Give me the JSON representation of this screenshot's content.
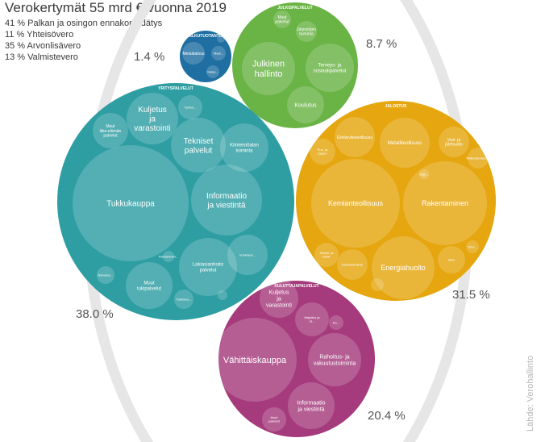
{
  "title": "Verokertymät 55 mrd € vuonna 2019",
  "legend": [
    "41 % Palkan ja osingon ennakonpidätys",
    "11 % Yhteisövero",
    "35 % Arvonlisävero",
    "13 % Valmistevero"
  ],
  "source": "Lähde: Verohallinto",
  "colors": {
    "alkutuotanto": "#1f6fa3",
    "julkispalvelut": "#6ab345",
    "yrityspalvelut": "#2e9ea3",
    "jalostus": "#e5a60f",
    "kuluttajapalvelut": "#a53b7c",
    "outer_ring": "#e6e6e6"
  },
  "chart_data": {
    "type": "packed-bubble",
    "sectors": [
      {
        "key": "alkutuotanto",
        "name": "ALKUTUOTANTO",
        "share_label": "1.4 %",
        "children": [
          {
            "label": "Metsätalous"
          },
          {
            "label": "Maat..."
          },
          {
            "label": "Kalas..."
          },
          {
            "label": ""
          }
        ]
      },
      {
        "key": "julkispalvelut",
        "name": "JULKISPALVELUT",
        "share_label": "8.7 %",
        "children": [
          {
            "label": "Julkinen hallinto"
          },
          {
            "label": "Terveys- ja sosiaalipalvelut"
          },
          {
            "label": "Koulutus"
          },
          {
            "label": "Muut palvelut"
          },
          {
            "label": "Järjestöjen toiminta"
          }
        ]
      },
      {
        "key": "yrityspalvelut",
        "name": "YRITYSPALVELUT",
        "share_label": "38.0 %",
        "children": [
          {
            "label": "Tukkukauppa"
          },
          {
            "label": "Informaatio ja viestintä"
          },
          {
            "label": "Tekniset palvelut"
          },
          {
            "label": "Kuljetus ja varastointi"
          },
          {
            "label": "Kiinteistöalan toiminta"
          },
          {
            "label": "Lakiasianhoito palvelut"
          },
          {
            "label": "Muut tukipalvelut"
          },
          {
            "label": "Muut liike-elämän palvelut"
          },
          {
            "label": "Rahoitus..."
          },
          {
            "label": "Työvoi..."
          },
          {
            "label": "Tutkimus..."
          },
          {
            "label": "Vuokraus..."
          },
          {
            "label": "Painaminen..."
          },
          {
            "label": ""
          }
        ]
      },
      {
        "key": "jalostus",
        "name": "JALOSTUS",
        "share_label": "31.5 %",
        "children": [
          {
            "label": "Kemianteollisuus"
          },
          {
            "label": "Rakentaminen"
          },
          {
            "label": "Energiahuolto"
          },
          {
            "label": "Metalliteollisuus"
          },
          {
            "label": "Elintarviketeollisuus"
          },
          {
            "label": "Vesi- ja jätehuolto"
          },
          {
            "label": "Rakentamisen..."
          },
          {
            "label": "Puu- ja paperi"
          },
          {
            "label": "Sähkö- ja elektr."
          },
          {
            "label": "Kaivostoiminta"
          },
          {
            "label": "Muu"
          },
          {
            "label": "Teks..."
          },
          {
            "label": "Kulk..."
          },
          {
            "label": ""
          }
        ]
      },
      {
        "key": "kuluttajapalvelut",
        "name": "KULUTTAJAPALVELUT",
        "share_label": "20.4 %",
        "children": [
          {
            "label": "Vähittäiskauppa"
          },
          {
            "label": "Rahoitus- ja vakuutustoiminta"
          },
          {
            "label": "Informaatio ja viestintä"
          },
          {
            "label": "Kuljetus ja varastointi"
          },
          {
            "label": "Majoitus ja ra..."
          },
          {
            "label": "Muut palvelut"
          },
          {
            "label": "Ko..."
          }
        ]
      }
    ]
  }
}
